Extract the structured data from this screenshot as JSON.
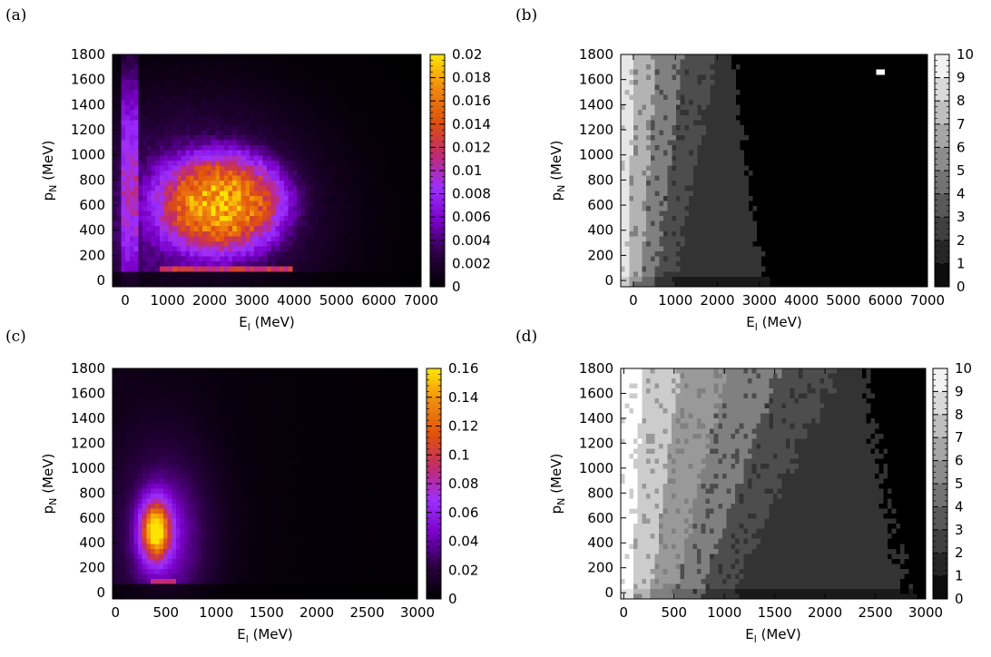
{
  "chart_data": [
    {
      "type": "heatmap",
      "panel_label": "(a)",
      "palette": "heat",
      "colors": [
        "#000000",
        "#2a0042",
        "#7a00c8",
        "#9d2fff",
        "#c02a6e",
        "#e0520a",
        "#f08a10",
        "#ffe300"
      ],
      "xlabel_main": "E",
      "xlabel_sub": "l",
      "xlabel_unit": " (MeV)",
      "ylabel_main": "p",
      "ylabel_sub": "N",
      "ylabel_unit": " (MeV)",
      "xlim": [
        -300,
        7000
      ],
      "ylim": [
        -50,
        1800
      ],
      "xticks": [
        0,
        1000,
        2000,
        3000,
        4000,
        5000,
        6000,
        7000
      ],
      "xtick_labels": [
        "0",
        "1000",
        "2000",
        "3000",
        "4000",
        "5000",
        "6000",
        "7000"
      ],
      "yticks": [
        0,
        200,
        400,
        600,
        800,
        1000,
        1200,
        1400,
        1600,
        1800
      ],
      "ytick_labels": [
        "0",
        "200",
        "400",
        "600",
        "800",
        "1000",
        "1200",
        "1400",
        "1600",
        "1800"
      ],
      "zlim": [
        0,
        0.02
      ],
      "zticks": [
        0,
        0.002,
        0.004,
        0.006,
        0.008,
        0.01,
        0.012,
        0.014,
        0.016,
        0.018,
        0.02
      ],
      "ztick_labels": [
        "0",
        "0.002",
        "0.004",
        "0.006",
        "0.008",
        "0.01",
        "0.012",
        "0.014",
        "0.016",
        "0.018",
        "0.02"
      ],
      "features": {
        "peak_value": 0.0135,
        "peak_center": [
          2300,
          620
        ],
        "peak_sigma": [
          1200,
          310
        ],
        "background_band": 0.005,
        "low_p_stripe": {
          "p": 85,
          "value": 0.012,
          "x_range": [
            800,
            4000
          ]
        },
        "vertical_edge": {
          "x": 200,
          "value": 0.006
        }
      }
    },
    {
      "type": "heatmap",
      "panel_label": "(b)",
      "palette": "gray",
      "colors": [
        "#000000",
        "#ffffff"
      ],
      "xlabel_main": "E",
      "xlabel_sub": "l",
      "xlabel_unit": " (MeV)",
      "ylabel_main": "p",
      "ylabel_sub": "N",
      "ylabel_unit": " (MeV)",
      "xlim": [
        -300,
        7000
      ],
      "ylim": [
        -50,
        1800
      ],
      "xticks": [
        0,
        1000,
        2000,
        3000,
        4000,
        5000,
        6000,
        7000
      ],
      "xtick_labels": [
        "0",
        "1000",
        "2000",
        "3000",
        "4000",
        "5000",
        "6000",
        "7000"
      ],
      "yticks": [
        0,
        200,
        400,
        600,
        800,
        1000,
        1200,
        1400,
        1600,
        1800
      ],
      "ytick_labels": [
        "0",
        "200",
        "400",
        "600",
        "800",
        "1000",
        "1200",
        "1400",
        "1600",
        "1800"
      ],
      "zlim": [
        0,
        10
      ],
      "zticks": [
        0,
        1,
        2,
        3,
        4,
        5,
        6,
        7,
        8,
        9,
        10
      ],
      "ztick_labels": [
        "0",
        "1",
        "2",
        "3",
        "4",
        "5",
        "6",
        "7",
        "8",
        "9",
        "10"
      ],
      "levels": 10,
      "features": {
        "boundary_E_at_top": 2400,
        "boundary_E_at_bottom": 3300,
        "region_levels_near_zero_E": [
          9,
          7,
          5,
          3,
          2
        ],
        "white_spot": [
          5900,
          1660
        ]
      }
    },
    {
      "type": "heatmap",
      "panel_label": "(c)",
      "palette": "heat",
      "colors": [
        "#000000",
        "#2a0042",
        "#7a00c8",
        "#9d2fff",
        "#c02a6e",
        "#e0520a",
        "#f08a10",
        "#ffe300"
      ],
      "xlabel_main": "E",
      "xlabel_sub": "l",
      "xlabel_unit": " (MeV)",
      "ylabel_main": "p",
      "ylabel_sub": "N",
      "ylabel_unit": " (MeV)",
      "xlim": [
        -30,
        3000
      ],
      "ylim": [
        -50,
        1800
      ],
      "xticks": [
        0,
        500,
        1000,
        1500,
        2000,
        2500,
        3000
      ],
      "xtick_labels": [
        "0",
        "500",
        "1000",
        "1500",
        "2000",
        "2500",
        "3000"
      ],
      "yticks": [
        0,
        200,
        400,
        600,
        800,
        1000,
        1200,
        1400,
        1600,
        1800
      ],
      "ytick_labels": [
        "0",
        "200",
        "400",
        "600",
        "800",
        "1000",
        "1200",
        "1400",
        "1600",
        "1800"
      ],
      "zlim": [
        0,
        0.16
      ],
      "zticks": [
        0,
        0.02,
        0.04,
        0.06,
        0.08,
        0.1,
        0.12,
        0.14,
        0.16
      ],
      "ztick_labels": [
        "0",
        "0.02",
        "0.04",
        "0.06",
        "0.08",
        "0.1",
        "0.12",
        "0.14",
        "0.16"
      ],
      "features": {
        "peak_value": 0.135,
        "peak_center": [
          400,
          500
        ],
        "peak_sigma": [
          120,
          190
        ],
        "tail_value": 0.04,
        "low_p_stripe": {
          "p": 80,
          "value": 0.09,
          "x_range": [
            350,
            600
          ]
        }
      }
    },
    {
      "type": "heatmap",
      "panel_label": "(d)",
      "palette": "gray",
      "colors": [
        "#000000",
        "#ffffff"
      ],
      "xlabel_main": "E",
      "xlabel_sub": "l",
      "xlabel_unit": " (MeV)",
      "ylabel_main": "p",
      "ylabel_sub": "N",
      "ylabel_unit": " (MeV)",
      "xlim": [
        -30,
        3000
      ],
      "ylim": [
        -50,
        1800
      ],
      "xticks": [
        0,
        500,
        1000,
        1500,
        2000,
        2500,
        3000
      ],
      "xtick_labels": [
        "0",
        "500",
        "1000",
        "1500",
        "2000",
        "2500",
        "3000"
      ],
      "yticks": [
        0,
        200,
        400,
        600,
        800,
        1000,
        1200,
        1400,
        1600,
        1800
      ],
      "ytick_labels": [
        "0",
        "200",
        "400",
        "600",
        "800",
        "1000",
        "1200",
        "1400",
        "1600",
        "1800"
      ],
      "zlim": [
        0,
        10
      ],
      "zticks": [
        0,
        1,
        2,
        3,
        4,
        5,
        6,
        7,
        8,
        9,
        10
      ],
      "ztick_labels": [
        "0",
        "1",
        "2",
        "3",
        "4",
        "5",
        "6",
        "7",
        "8",
        "9",
        "10"
      ],
      "levels": 10,
      "features": {
        "boundary_E_at_top": 2400,
        "boundary_E_at_bottom": 2900,
        "region_levels_near_zero_E": [
          10,
          8,
          6,
          5,
          3,
          2
        ]
      }
    }
  ]
}
